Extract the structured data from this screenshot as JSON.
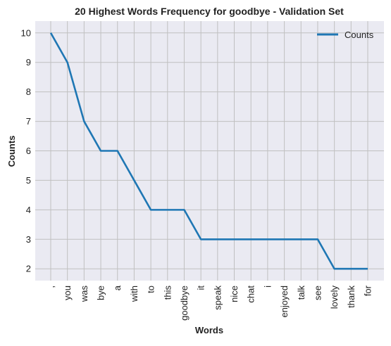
{
  "chart_data": {
    "type": "line",
    "title": "20 Highest Words Frequency for goodbye - Validation Set",
    "xlabel": "Words",
    "ylabel": "Counts",
    "categories": [
      ",",
      "you",
      "was",
      "bye",
      "a",
      "with",
      "to",
      "this",
      "goodbye",
      "it",
      "speak",
      "nice",
      "chat",
      "i",
      "enjoyed",
      "talk",
      "see",
      "lovely",
      "thank",
      "for"
    ],
    "series": [
      {
        "name": "Counts",
        "values": [
          10,
          9,
          7,
          6,
          6,
          5,
          4,
          4,
          4,
          3,
          3,
          3,
          3,
          3,
          3,
          3,
          3,
          2,
          2,
          2
        ],
        "color": "#1f77b4"
      }
    ],
    "ylim": [
      1.6,
      10.4
    ],
    "yticks": [
      2,
      3,
      4,
      5,
      6,
      7,
      8,
      9,
      10
    ],
    "grid": true,
    "legend_position": "top-right",
    "background_color": "#eaeaf2",
    "grid_color": "#c0c0c0"
  }
}
